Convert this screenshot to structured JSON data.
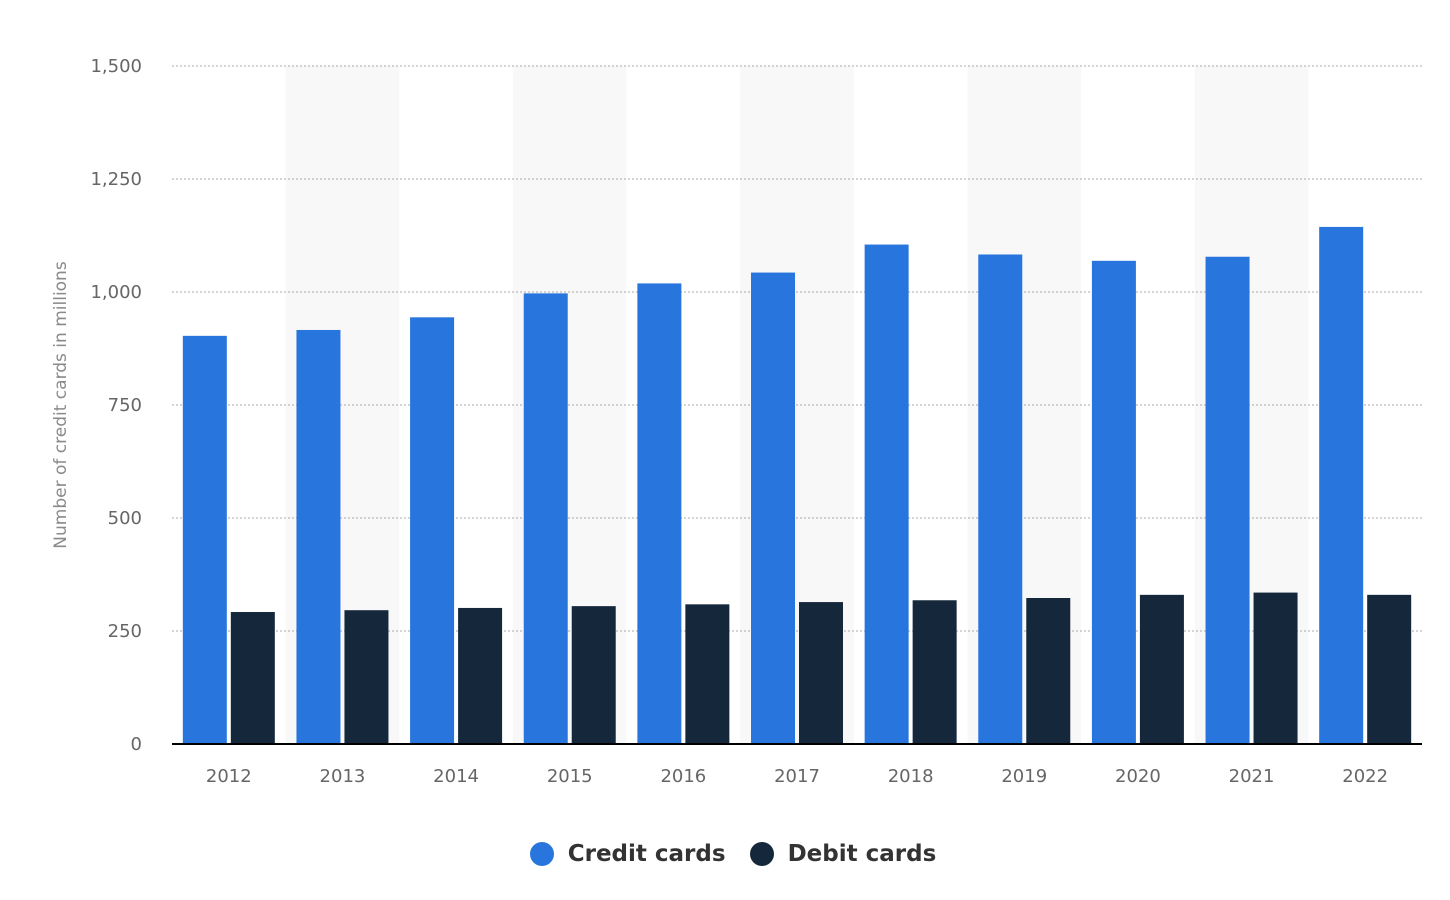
{
  "chart_data": {
    "type": "bar",
    "ylabel": "Number of credit cards in millions",
    "ylim": [
      0,
      1500
    ],
    "yticks": [
      0,
      250,
      500,
      750,
      1000,
      1250,
      1500
    ],
    "ytick_labels": [
      "0",
      "250",
      "500",
      "750",
      "1,000",
      "1,250",
      "1,500"
    ],
    "categories": [
      "2012",
      "2013",
      "2014",
      "2015",
      "2016",
      "2017",
      "2018",
      "2019",
      "2020",
      "2021",
      "2022"
    ],
    "series": [
      {
        "name": "Credit cards",
        "color": "#2876dd",
        "values": [
          903,
          916,
          944,
          997,
          1019,
          1043,
          1105,
          1083,
          1069,
          1078,
          1144
        ]
      },
      {
        "name": "Debit cards",
        "color": "#14273b",
        "values": [
          292,
          296,
          301,
          305,
          309,
          314,
          318,
          323,
          330,
          335,
          330
        ]
      }
    ],
    "grid": true,
    "alternating_column_shading": true,
    "legend_position": "bottom-center"
  }
}
